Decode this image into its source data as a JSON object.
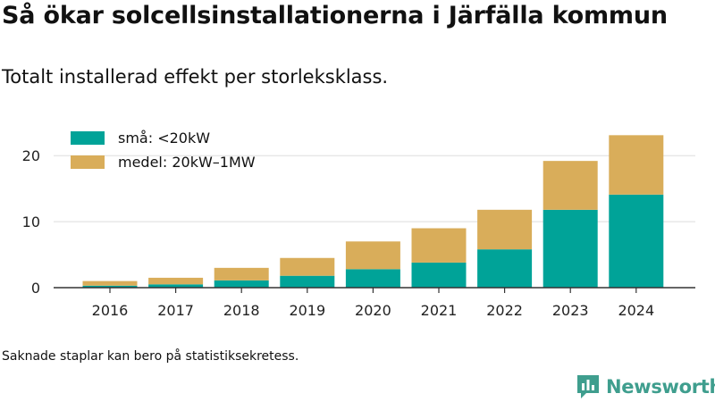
{
  "header": {
    "title": "Så ökar solcellsinstallationerna i Järfälla kommun",
    "subtitle": "Totalt installerad effekt per storleksklass."
  },
  "footer": {
    "note": "Saknade staplar kan bero på statistiksekretess.",
    "brand": "Newsworthy",
    "brand_icon": "newsworthy-logo-icon"
  },
  "colors": {
    "small": "#00a398",
    "medium": "#d9ad5a",
    "grid": "#dddddd",
    "axis": "#333333",
    "brand": "#3f9e8e"
  },
  "chart_data": {
    "type": "bar",
    "stacked": true,
    "categories": [
      "2016",
      "2017",
      "2018",
      "2019",
      "2020",
      "2021",
      "2022",
      "2023",
      "2024"
    ],
    "series": [
      {
        "name": "små: <20kW",
        "values": [
          0.3,
          0.5,
          1.1,
          1.8,
          2.8,
          3.8,
          5.8,
          11.8,
          14.1
        ]
      },
      {
        "name": "medel: 20kW–1MW",
        "values": [
          0.7,
          1.0,
          1.9,
          2.7,
          4.2,
          5.2,
          6.0,
          7.4,
          9.0
        ]
      }
    ],
    "yticks": [
      0,
      10,
      20
    ],
    "ylim": [
      0,
      24.5
    ],
    "grid": true,
    "legend": "top-left"
  }
}
